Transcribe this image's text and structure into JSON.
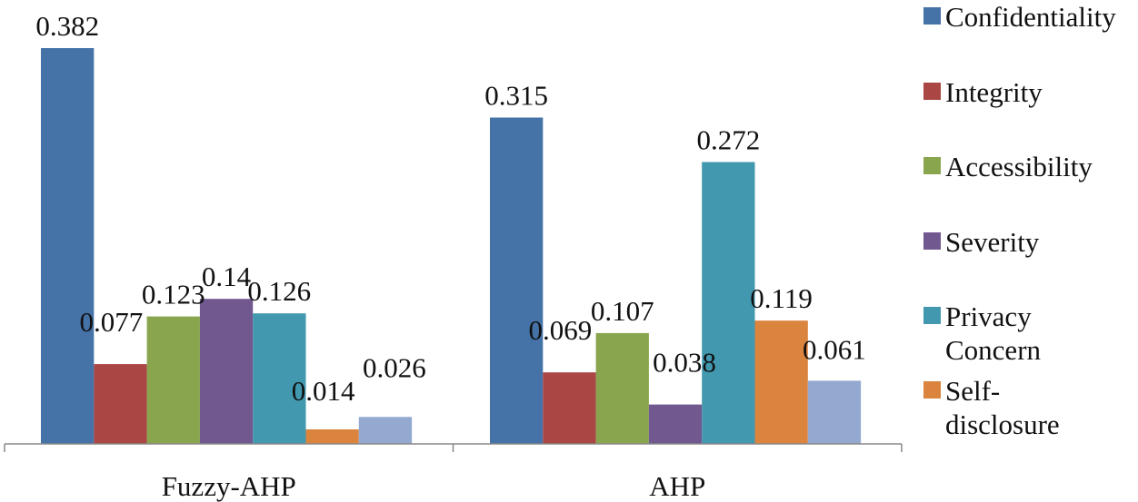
{
  "chart_data": {
    "type": "bar",
    "categories": [
      "Fuzzy-AHP",
      "AHP"
    ],
    "series": [
      {
        "name": "Confidentiality",
        "color": "#4572A7",
        "values": [
          0.382,
          0.315
        ],
        "labels": [
          "0.382",
          "0.315"
        ]
      },
      {
        "name": "Integrity",
        "color": "#AA4643",
        "values": [
          0.077,
          0.069
        ],
        "labels": [
          "0.077",
          "0.069"
        ]
      },
      {
        "name": "Accessibility",
        "color": "#89A54E",
        "values": [
          0.123,
          0.107
        ],
        "labels": [
          "0.123",
          "0.107"
        ]
      },
      {
        "name": "Severity",
        "color": "#71588F",
        "values": [
          0.14,
          0.038
        ],
        "labels": [
          "0.14",
          "0.038"
        ]
      },
      {
        "name": "Privacy Concern",
        "legend_lines": [
          "Privacy",
          "Concern"
        ],
        "color": "#4198AF",
        "values": [
          0.126,
          0.272
        ],
        "labels": [
          "0.126",
          "0.272"
        ]
      },
      {
        "name": "Self-disclosure",
        "legend_lines": [
          "Self-",
          "disclosure"
        ],
        "color": "#DB843D",
        "values": [
          0.014,
          0.119
        ],
        "labels": [
          "0.014",
          "0.119"
        ]
      },
      {
        "name": "",
        "color": "#93A9CF",
        "values": [
          0.026,
          0.061
        ],
        "labels": [
          "0.026",
          "0.061"
        ]
      }
    ],
    "ylim": [
      0,
      0.382
    ],
    "grid": false,
    "legend": "right",
    "title": "",
    "xlabel": "",
    "ylabel": ""
  }
}
